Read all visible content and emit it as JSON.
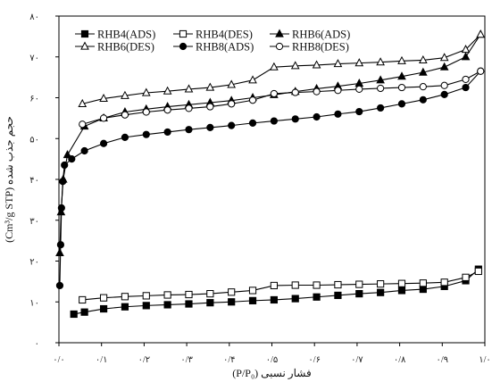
{
  "chart_data": {
    "type": "line",
    "title": "",
    "xlabel": "(P/P₀) فشار نسبی",
    "ylabel": "(Cm³/g STP) حجم جذب شده",
    "xlim": [
      0,
      1.0
    ],
    "ylim": [
      0,
      80
    ],
    "xticks": [
      "۰/۰",
      "۰/۱",
      "۰/۲",
      "۰/۳",
      "۰/۴",
      "۰/۵",
      "۰/۶",
      "۰/۷",
      "۰/۸",
      "۰/۹",
      "۱/۰"
    ],
    "yticks": [
      "۰",
      "۱۰",
      "۲۰",
      "۳۰",
      "۴۰",
      "۵۰",
      "۶۰",
      "۷۰",
      "۸۰"
    ],
    "legend_position": "top-left",
    "grid": false,
    "series": [
      {
        "name": "RHB4(ADS)",
        "marker": "square-filled",
        "x": [
          0.035,
          0.06,
          0.105,
          0.155,
          0.205,
          0.255,
          0.305,
          0.355,
          0.405,
          0.455,
          0.505,
          0.555,
          0.605,
          0.655,
          0.705,
          0.755,
          0.805,
          0.855,
          0.905,
          0.955,
          0.985
        ],
        "y": [
          7,
          7.5,
          8.3,
          8.8,
          9.1,
          9.3,
          9.5,
          9.8,
          10.0,
          10.3,
          10.5,
          10.8,
          11.2,
          11.6,
          12.0,
          12.3,
          12.8,
          13.1,
          13.8,
          15.2,
          18.0
        ]
      },
      {
        "name": "RHB4(DES)",
        "marker": "square-open",
        "x": [
          0.055,
          0.105,
          0.155,
          0.205,
          0.255,
          0.305,
          0.355,
          0.405,
          0.455,
          0.505,
          0.555,
          0.605,
          0.655,
          0.705,
          0.755,
          0.805,
          0.855,
          0.905,
          0.955,
          0.985
        ],
        "y": [
          10.5,
          11.0,
          11.3,
          11.5,
          11.7,
          11.8,
          12.0,
          12.4,
          12.8,
          14.0,
          14.1,
          14.1,
          14.2,
          14.3,
          14.4,
          14.5,
          14.6,
          14.8,
          16.0,
          17.5
        ]
      },
      {
        "name": "RHB6(ADS)",
        "marker": "triangle-filled",
        "x": [
          0.002,
          0.005,
          0.01,
          0.02,
          0.06,
          0.105,
          0.155,
          0.205,
          0.255,
          0.305,
          0.355,
          0.405,
          0.455,
          0.505,
          0.555,
          0.605,
          0.655,
          0.705,
          0.755,
          0.805,
          0.855,
          0.905,
          0.955,
          0.99
        ],
        "y": [
          22,
          32,
          40,
          46,
          53,
          55,
          56.5,
          57.2,
          57.8,
          58.3,
          58.8,
          59.3,
          60.0,
          60.7,
          61.5,
          62.2,
          62.8,
          63.5,
          64.3,
          65.2,
          66.2,
          67.5,
          70.0,
          75.5
        ]
      },
      {
        "name": "RHB6(DES)",
        "marker": "triangle-open",
        "x": [
          0.055,
          0.105,
          0.155,
          0.205,
          0.255,
          0.305,
          0.355,
          0.405,
          0.455,
          0.505,
          0.555,
          0.605,
          0.655,
          0.705,
          0.755,
          0.805,
          0.855,
          0.905,
          0.955,
          0.99
        ],
        "y": [
          58.5,
          59.8,
          60.5,
          61.2,
          61.6,
          62.1,
          62.5,
          63.2,
          64.3,
          67.5,
          67.8,
          68.0,
          68.3,
          68.5,
          68.7,
          69.0,
          69.2,
          69.8,
          71.8,
          75.5
        ]
      },
      {
        "name": "RHB8(ADS)",
        "marker": "circle-filled",
        "x": [
          0.002,
          0.004,
          0.006,
          0.009,
          0.013,
          0.03,
          0.06,
          0.105,
          0.155,
          0.205,
          0.255,
          0.305,
          0.355,
          0.405,
          0.455,
          0.505,
          0.555,
          0.605,
          0.655,
          0.705,
          0.755,
          0.805,
          0.855,
          0.905,
          0.955,
          0.99
        ],
        "y": [
          14,
          24,
          33,
          39.5,
          43.5,
          45,
          47,
          48.8,
          50.3,
          51.0,
          51.6,
          52.2,
          52.7,
          53.2,
          53.8,
          54.3,
          54.8,
          55.3,
          56.0,
          56.6,
          57.5,
          58.5,
          59.5,
          60.8,
          62.5,
          66.5
        ]
      },
      {
        "name": "RHB8(DES)",
        "marker": "circle-open",
        "x": [
          0.055,
          0.105,
          0.155,
          0.205,
          0.255,
          0.305,
          0.355,
          0.405,
          0.455,
          0.505,
          0.555,
          0.605,
          0.655,
          0.705,
          0.755,
          0.805,
          0.855,
          0.905,
          0.955,
          0.99
        ],
        "y": [
          53.5,
          55.0,
          55.8,
          56.5,
          57.0,
          57.4,
          57.8,
          58.5,
          59.4,
          61.0,
          61.3,
          61.5,
          61.8,
          62.1,
          62.3,
          62.5,
          62.7,
          63.0,
          64.5,
          66.5
        ]
      }
    ]
  }
}
